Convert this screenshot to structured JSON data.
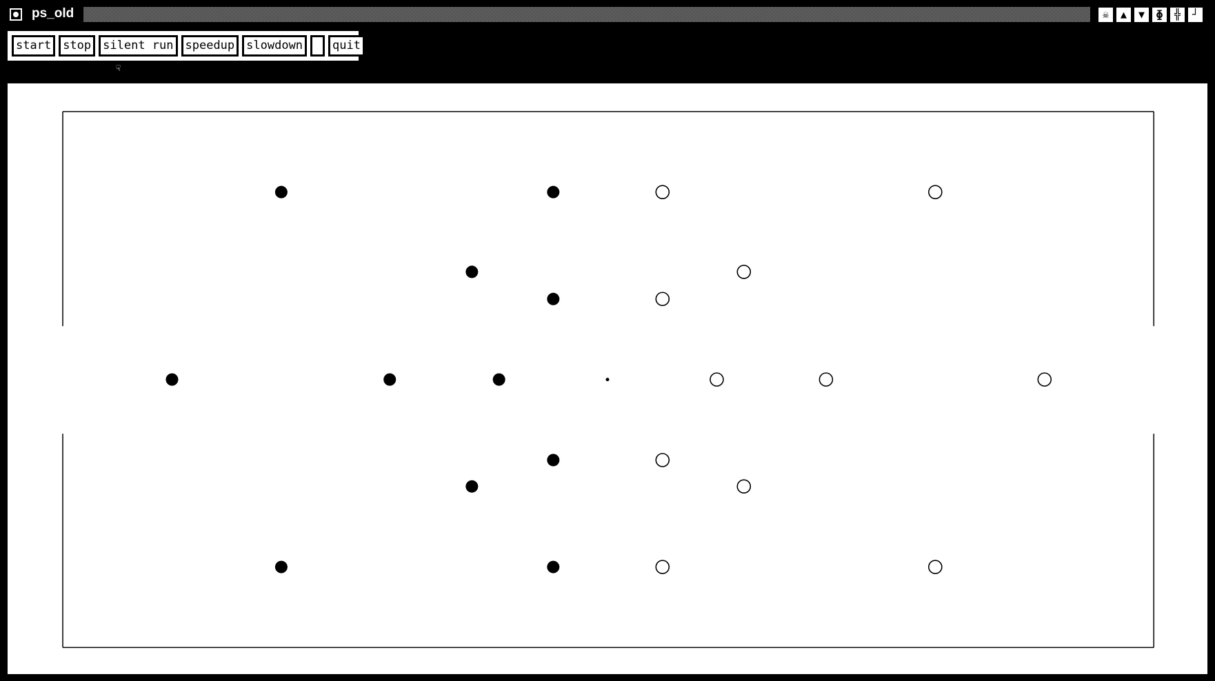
{
  "window": {
    "title": "ps_old"
  },
  "window_controls": [
    "kill-icon",
    "raise-icon",
    "lower-icon",
    "resize-icon",
    "move-icon",
    "iconify-icon"
  ],
  "toolbar": {
    "buttons": [
      {
        "label": "start"
      },
      {
        "label": "stop"
      },
      {
        "label": "silent run"
      },
      {
        "label": "speedup"
      },
      {
        "label": "slowdown"
      },
      {
        "label": " "
      },
      {
        "label": "quit"
      }
    ]
  },
  "colors": {
    "background": "#000000",
    "canvas": "#ffffff",
    "particle": "#000000"
  }
}
